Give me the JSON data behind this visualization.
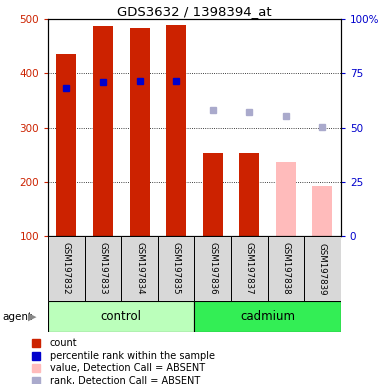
{
  "title": "GDS3632 / 1398394_at",
  "samples": [
    "GSM197832",
    "GSM197833",
    "GSM197834",
    "GSM197835",
    "GSM197836",
    "GSM197837",
    "GSM197838",
    "GSM197839"
  ],
  "bar_heights_present": [
    435,
    487,
    484,
    490,
    253,
    253,
    null,
    null
  ],
  "bar_heights_absent": [
    null,
    null,
    null,
    null,
    null,
    null,
    237,
    193
  ],
  "blue_dots_present": [
    68.25,
    71.25,
    71.5,
    71.5,
    null,
    null,
    null,
    null
  ],
  "blue_dots_absent": [
    null,
    null,
    null,
    null,
    58.0,
    57.25,
    55.5,
    50.5
  ],
  "bar_color_present": "#cc2200",
  "bar_color_absent": "#ffbbbb",
  "dot_color_present": "#0000cc",
  "dot_color_absent": "#aaaacc",
  "ylim_left": [
    100,
    500
  ],
  "ylim_right": [
    0,
    100
  ],
  "yticks_left": [
    100,
    200,
    300,
    400,
    500
  ],
  "yticks_right": [
    0,
    25,
    50,
    75,
    100
  ],
  "yticklabels_right": [
    "0",
    "25",
    "50",
    "75",
    "100%"
  ],
  "control_color": "#bbffbb",
  "cadmium_color": "#33ee55",
  "legend_colors": [
    "#cc2200",
    "#0000cc",
    "#ffbbbb",
    "#aaaacc"
  ],
  "legend_labels": [
    "count",
    "percentile rank within the sample",
    "value, Detection Call = ABSENT",
    "rank, Detection Call = ABSENT"
  ]
}
